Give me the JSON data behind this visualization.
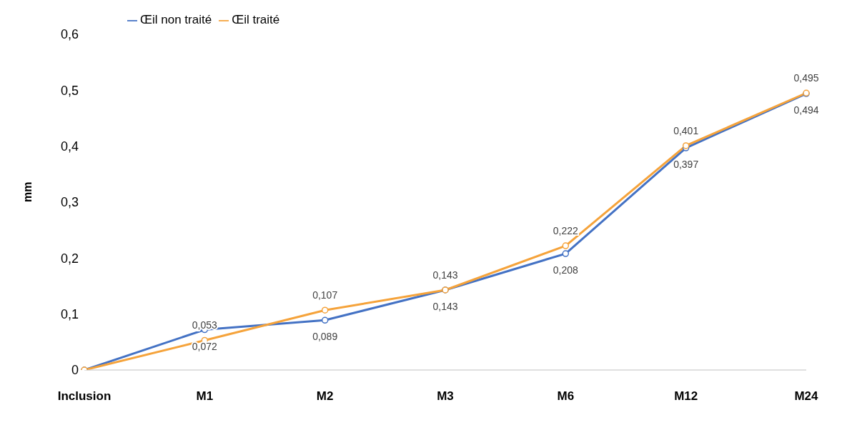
{
  "chart_data": {
    "type": "line",
    "ylabel": "mm",
    "categories": [
      "Inclusion",
      "M1",
      "M2",
      "M3",
      "M6",
      "M12",
      "M24"
    ],
    "series": [
      {
        "name": "Œil non traité",
        "color": "#4472c4",
        "values": [
          0,
          0.072,
          0.089,
          0.143,
          0.208,
          0.397,
          0.494
        ],
        "value_labels": [
          null,
          "0,072",
          "0,089",
          "0,143",
          "0,208",
          "0,397",
          "0,494"
        ]
      },
      {
        "name": "Œil traité",
        "color": "#f5a33b",
        "values": [
          0,
          0.053,
          0.107,
          0.143,
          0.222,
          0.401,
          0.495
        ],
        "value_labels": [
          null,
          "0,053",
          "0,107",
          "0,143",
          "0,222",
          "0,401",
          "0,495"
        ]
      }
    ],
    "ylim": [
      0,
      0.6
    ],
    "yticks": [
      0,
      {
        "value": 0.1,
        "label": "0,1"
      },
      {
        "value": 0.2,
        "label": "0,2"
      },
      {
        "value": 0.3,
        "label": "0,3"
      },
      {
        "value": 0.4,
        "label": "0,4"
      },
      {
        "value": 0.5,
        "label": "0,5"
      },
      {
        "value": 0.6,
        "label": "0,6"
      }
    ],
    "grid": false,
    "legend": "top left",
    "marker": "circle",
    "line_style": "solid"
  }
}
